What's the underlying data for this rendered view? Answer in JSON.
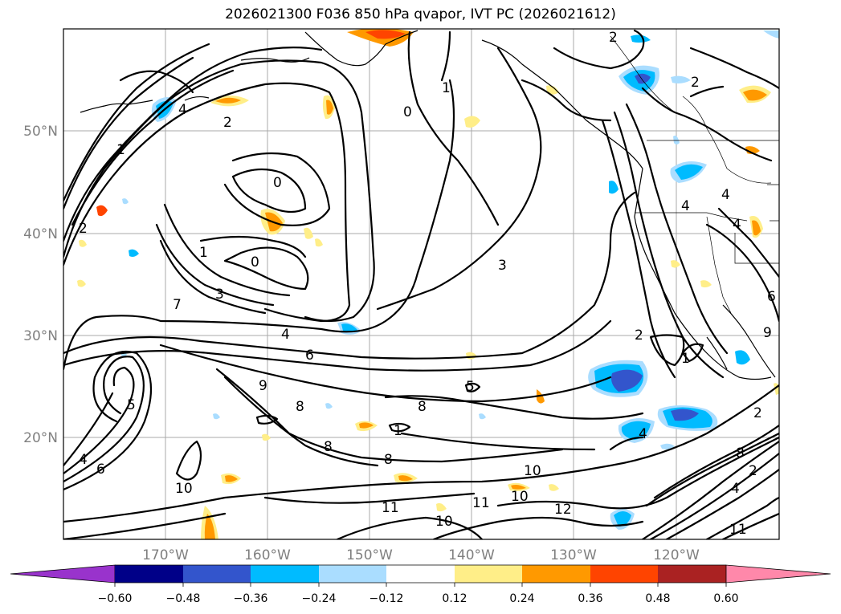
{
  "title": "2026021300 F036 850 hPa qvapor, IVT PC (2026021612)",
  "map": {
    "lon_range": [
      -180,
      -110
    ],
    "lat_range": [
      10,
      60
    ],
    "lat_labels": [
      {
        "lat": 50,
        "text": "50°N"
      },
      {
        "lat": 40,
        "text": "40°N"
      },
      {
        "lat": 30,
        "text": "30°N"
      },
      {
        "lat": 20,
        "text": "20°N"
      }
    ],
    "lon_labels": [
      {
        "lon": -170,
        "text": "170°W"
      },
      {
        "lon": -160,
        "text": "160°W"
      },
      {
        "lon": -150,
        "text": "150°W"
      },
      {
        "lon": -140,
        "text": "140°W"
      },
      {
        "lon": -130,
        "text": "130°W"
      },
      {
        "lon": -120,
        "text": "120°W"
      }
    ],
    "contour_labels": [
      "1",
      "2",
      "4",
      "0",
      "0",
      "3",
      "7",
      "4",
      "6",
      "9",
      "8",
      "8",
      "8",
      "8",
      "1",
      "5",
      "5",
      "10",
      "10",
      "11",
      "10",
      "11",
      "12",
      "10",
      "4",
      "6",
      "8",
      "2",
      "4",
      "11",
      "2",
      "1",
      "4",
      "4",
      "6",
      "3",
      "1",
      "2",
      "2",
      "1",
      "2",
      "4",
      "4",
      "0",
      "9",
      "2"
    ]
  },
  "colorbar": {
    "colors": [
      "#9933cc",
      "#000088",
      "#3355cc",
      "#00bbff",
      "#aaddff",
      "#ffffff",
      "#ffee88",
      "#ff9900",
      "#ff4400",
      "#aa2222",
      "#ff88aa"
    ],
    "tick_labels": [
      "−0.60",
      "−0.48",
      "−0.36",
      "−0.24",
      "−0.12",
      "0.12",
      "0.24",
      "0.36",
      "0.48",
      "0.60"
    ]
  }
}
